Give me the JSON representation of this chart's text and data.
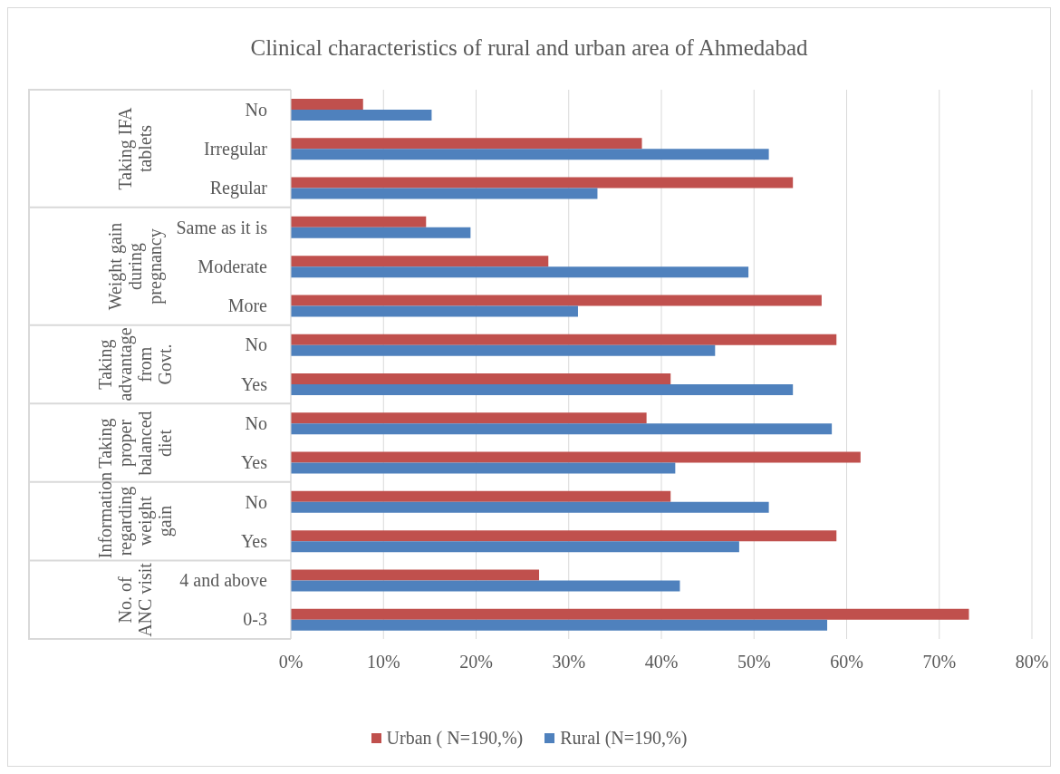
{
  "chart_data": {
    "type": "bar",
    "orientation": "horizontal",
    "title": "Clinical characteristics of rural and urban area of Ahmedabad",
    "categories": [
      "No",
      "Irregular",
      "Regular",
      "Same as it is",
      "Moderate",
      "More",
      "No",
      "Yes",
      "No",
      "Yes",
      "No",
      "Yes",
      "4 and above",
      "0-3"
    ],
    "series": [
      {
        "name": "Urban ( N=190,%)",
        "color": "#c0504d",
        "values": [
          7.8,
          37.9,
          54.2,
          14.6,
          27.8,
          57.3,
          58.9,
          41.0,
          38.4,
          61.5,
          41.0,
          58.9,
          26.8,
          73.2
        ]
      },
      {
        "name": "Rural (N=190,%)",
        "color": "#4f81bd",
        "values": [
          15.2,
          51.6,
          33.1,
          19.4,
          49.4,
          31.0,
          45.8,
          54.2,
          58.4,
          41.5,
          51.6,
          48.4,
          42.0,
          57.9
        ]
      }
    ],
    "xlim": [
      0,
      80
    ],
    "xticks": [
      {
        "value": 0,
        "label": "0%"
      },
      {
        "value": 10,
        "label": "10%"
      },
      {
        "value": 20,
        "label": "20%"
      },
      {
        "value": 30,
        "label": "30%"
      },
      {
        "value": 40,
        "label": "40%"
      },
      {
        "value": 50,
        "label": "50%"
      },
      {
        "value": 60,
        "label": "60%"
      },
      {
        "value": 70,
        "label": "70%"
      },
      {
        "value": 80,
        "label": "80%"
      }
    ],
    "annotations": [
      "Taking IFA tablets",
      "Weight gain during pregnancy",
      "Taking advantage from Govt.",
      "Taking proper balanced diet",
      "Information regarding weight gain",
      "No. of ANC visit"
    ],
    "grid": "x",
    "legend": "bottom"
  }
}
